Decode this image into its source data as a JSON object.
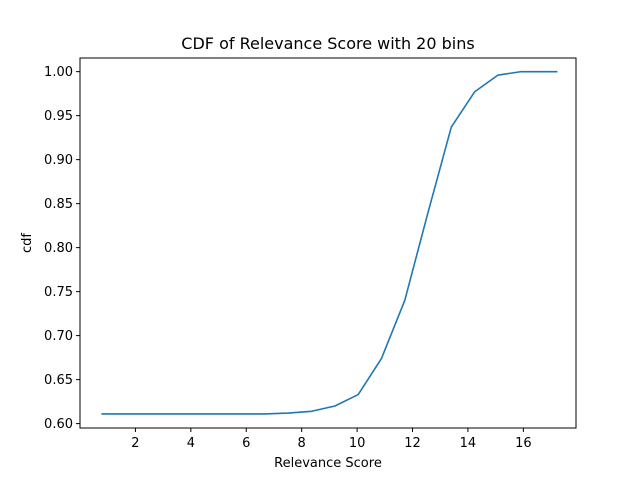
{
  "chart_data": {
    "type": "line",
    "title": "CDF of Relevance Score with 20 bins",
    "xlabel": "Relevance Score",
    "ylabel": "cdf",
    "xlim": [
      0.0,
      17.9
    ],
    "ylim": [
      0.595,
      1.0155
    ],
    "x_ticks": [
      2,
      4,
      6,
      8,
      10,
      12,
      14,
      16
    ],
    "x_tick_labels": [
      "2",
      "4",
      "6",
      "8",
      "10",
      "12",
      "14",
      "16"
    ],
    "y_ticks": [
      0.6,
      0.65,
      0.7,
      0.75,
      0.8,
      0.85,
      0.9,
      0.95,
      1.0
    ],
    "y_tick_labels": [
      "0.60",
      "0.65",
      "0.70",
      "0.75",
      "0.80",
      "0.85",
      "0.90",
      "0.95",
      "1.00"
    ],
    "grid": false,
    "legend": "none",
    "series": [
      {
        "color": "#1f77b4",
        "x": [
          0.8,
          1.64,
          2.48,
          3.32,
          4.16,
          5.0,
          5.84,
          6.68,
          7.52,
          8.36,
          9.2,
          10.04,
          10.88,
          11.72,
          12.56,
          13.4,
          14.24,
          15.08,
          15.92,
          16.76,
          17.2
        ],
        "values": [
          0.611,
          0.611,
          0.611,
          0.611,
          0.611,
          0.611,
          0.611,
          0.611,
          0.612,
          0.614,
          0.62,
          0.633,
          0.674,
          0.74,
          0.84,
          0.937,
          0.977,
          0.996,
          1.0,
          1.0,
          1.0
        ]
      }
    ]
  }
}
